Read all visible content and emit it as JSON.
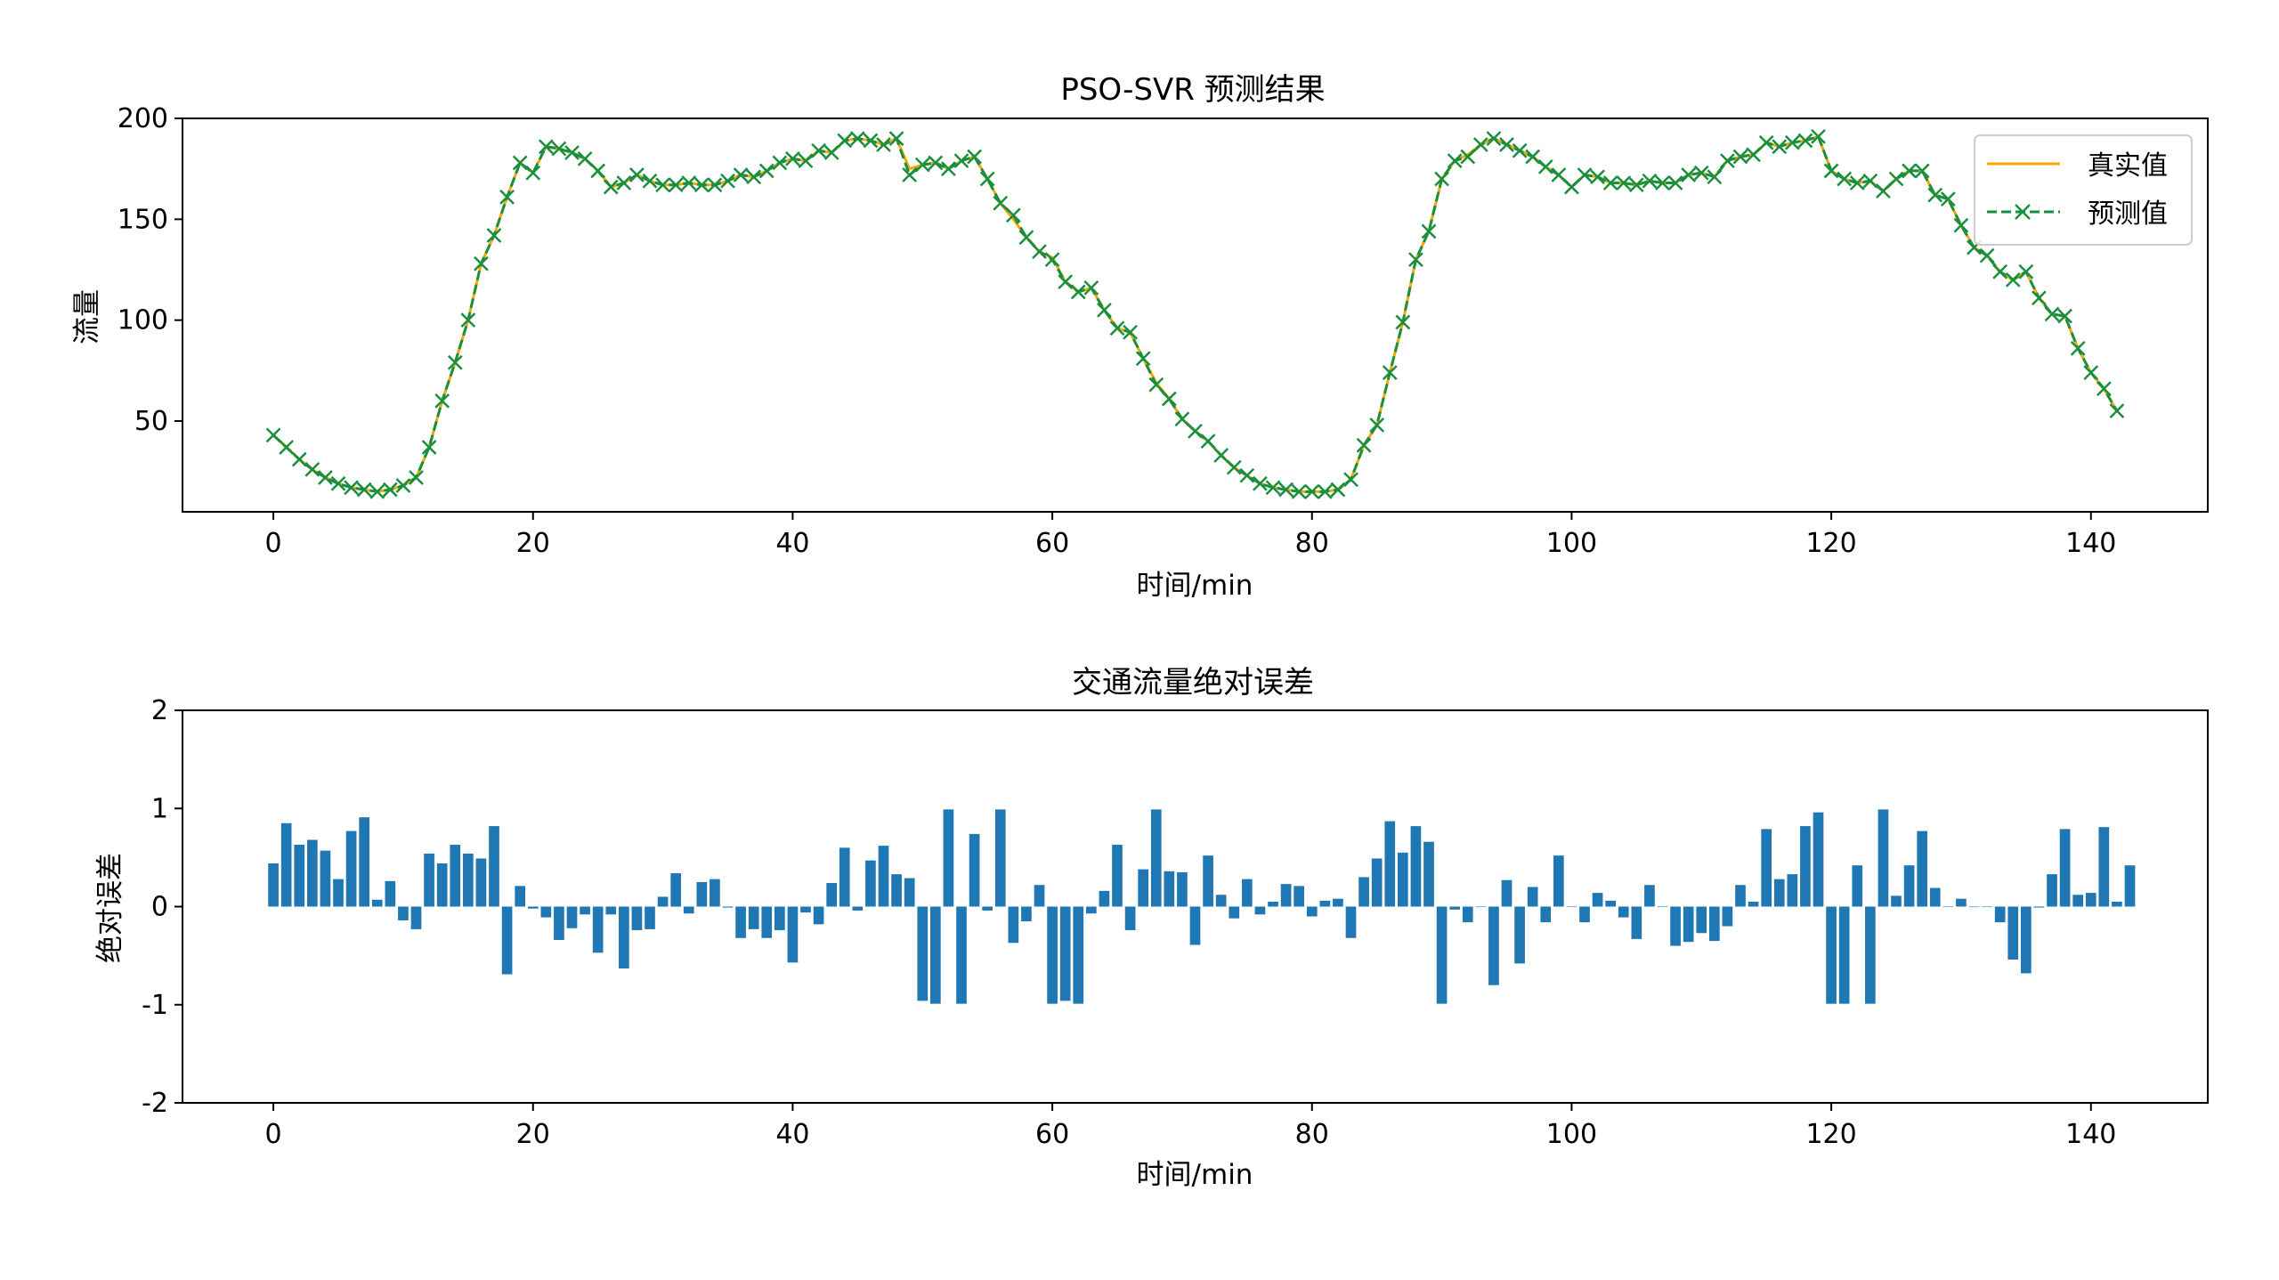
{
  "chart_data": [
    {
      "type": "line",
      "title": "PSO-SVR 预测结果",
      "xlabel": "时间/min",
      "ylabel": "流量",
      "xlim": [
        -7,
        149
      ],
      "ylim": [
        5,
        200
      ],
      "xticks": [
        0,
        20,
        40,
        60,
        80,
        100,
        120,
        140
      ],
      "yticks": [
        50,
        100,
        150,
        200
      ],
      "legend_position": "top-right",
      "grid": false,
      "series": [
        {
          "name": "真实值",
          "color": "#ffa500",
          "style": "solid",
          "values": [
            43,
            37,
            31,
            26,
            22,
            19,
            17,
            16,
            15,
            16,
            18,
            22,
            37,
            60,
            79,
            100,
            128,
            142,
            161,
            178,
            173,
            186,
            185,
            183,
            180,
            174,
            166,
            168,
            172,
            169,
            167,
            167,
            168,
            167,
            167,
            169,
            172,
            171,
            174,
            178,
            180,
            179,
            184,
            183,
            189,
            190,
            189,
            187,
            190,
            175,
            177,
            178,
            175,
            179,
            181,
            170,
            158,
            150,
            141,
            134,
            131,
            119,
            114,
            116,
            105,
            96,
            94,
            81,
            69,
            61,
            51,
            45,
            40,
            33,
            27,
            23,
            19,
            17,
            16,
            15,
            15,
            15,
            16,
            21,
            38,
            48,
            74,
            99,
            130,
            144,
            170,
            179,
            182,
            187,
            190,
            187,
            184,
            181,
            176,
            172,
            166,
            172,
            171,
            168,
            168,
            167,
            169,
            168,
            168,
            172,
            173,
            171,
            179,
            181,
            182,
            188,
            186,
            188,
            189,
            191,
            174,
            170,
            168,
            169,
            164,
            170,
            174,
            174,
            162,
            160,
            147,
            136,
            132,
            124,
            120,
            124,
            111,
            103,
            102,
            86,
            74,
            66,
            55
          ]
        },
        {
          "name": "预测值",
          "color": "#1a8f3e",
          "style": "dashed",
          "marker": "x",
          "values": [
            43,
            37,
            31,
            26,
            22,
            19,
            17,
            16,
            15,
            16,
            18,
            22,
            37,
            60,
            79,
            100,
            128,
            142,
            161,
            178,
            173,
            186,
            185,
            183,
            180,
            174,
            166,
            168,
            172,
            169,
            167,
            167,
            168,
            167,
            167,
            169,
            172,
            171,
            174,
            178,
            180,
            179,
            184,
            183,
            189,
            190,
            189,
            187,
            190,
            172,
            177,
            178,
            175,
            179,
            181,
            170,
            158,
            152,
            141,
            134,
            130,
            119,
            114,
            116,
            105,
            96,
            94,
            81,
            68,
            61,
            51,
            45,
            40,
            33,
            27,
            23,
            19,
            17,
            16,
            15,
            15,
            15,
            16,
            21,
            38,
            48,
            74,
            99,
            130,
            144,
            170,
            179,
            181,
            187,
            190,
            187,
            184,
            181,
            176,
            172,
            166,
            172,
            171,
            168,
            168,
            167,
            169,
            168,
            168,
            172,
            173,
            171,
            179,
            181,
            182,
            188,
            186,
            188,
            189,
            191,
            174,
            170,
            168,
            169,
            164,
            170,
            174,
            174,
            162,
            160,
            147,
            136,
            132,
            124,
            120,
            124,
            111,
            103,
            102,
            86,
            74,
            66,
            55
          ]
        }
      ]
    },
    {
      "type": "bar",
      "title": "交通流量绝对误差",
      "xlabel": "时间/min",
      "ylabel": "绝对误差",
      "xlim": [
        -7,
        149
      ],
      "ylim": [
        -2,
        2
      ],
      "xticks": [
        0,
        20,
        40,
        60,
        80,
        100,
        120,
        140
      ],
      "yticks": [
        -2,
        -1,
        0,
        1,
        2
      ],
      "grid": false,
      "color": "#1f77b4",
      "values": [
        0.44,
        0.85,
        0.63,
        0.68,
        0.57,
        0.28,
        0.77,
        0.91,
        0.07,
        0.26,
        -0.14,
        -0.23,
        0.54,
        0.44,
        0.63,
        0.54,
        0.49,
        0.82,
        -0.69,
        0.21,
        -0.02,
        -0.11,
        -0.34,
        -0.22,
        -0.08,
        -0.47,
        -0.08,
        -0.63,
        -0.24,
        -0.23,
        0.1,
        0.34,
        -0.07,
        0.25,
        0.28,
        -0.01,
        -0.32,
        -0.23,
        -0.32,
        -0.24,
        -0.57,
        -0.06,
        -0.18,
        0.24,
        0.6,
        -0.04,
        0.47,
        0.62,
        0.33,
        0.29,
        -0.96,
        -0.99,
        0.99,
        -0.99,
        0.74,
        -0.04,
        0.99,
        -0.37,
        -0.15,
        0.22,
        -0.99,
        -0.96,
        -0.99,
        -0.07,
        0.16,
        0.63,
        -0.24,
        0.38,
        0.99,
        0.36,
        0.35,
        -0.39,
        0.52,
        0.12,
        -0.12,
        0.28,
        -0.08,
        0.05,
        0.23,
        0.21,
        -0.1,
        0.06,
        0.08,
        -0.32,
        0.3,
        0.49,
        0.87,
        0.55,
        0.82,
        0.66,
        -0.99,
        -0.03,
        -0.16,
        0.0,
        -0.8,
        0.27,
        -0.58,
        0.2,
        -0.16,
        0.52,
        0.0,
        -0.16,
        0.14,
        0.06,
        -0.11,
        -0.33,
        0.22,
        0.0,
        -0.4,
        -0.36,
        -0.27,
        -0.35,
        -0.2,
        0.22,
        0.05,
        0.79,
        0.28,
        0.33,
        0.82,
        0.96,
        -0.99,
        -0.99,
        0.42,
        -0.99,
        0.99,
        0.11,
        0.42,
        0.77,
        0.19,
        0.0,
        0.08,
        0.0,
        0.0,
        -0.16,
        -0.54,
        -0.68,
        -0.01,
        0.33,
        0.79,
        0.12,
        0.14,
        0.81,
        0.05,
        0.42
      ]
    }
  ]
}
